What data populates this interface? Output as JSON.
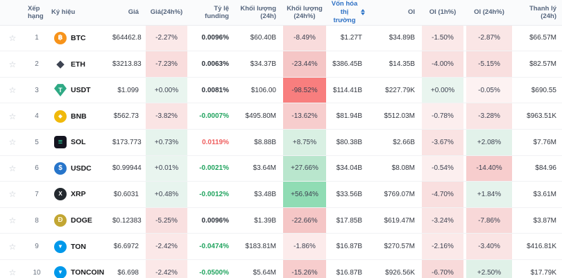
{
  "header": {
    "cols": [
      {
        "label": ""
      },
      {
        "label": "Xếp hạng"
      },
      {
        "label": "Ký hiệu"
      },
      {
        "label": "Giá"
      },
      {
        "label": "Giá(24h%)"
      },
      {
        "label": "Tỷ lệ funding"
      },
      {
        "label": "Khối lượng (24h)"
      },
      {
        "label": "Khối lượng (24h%)"
      },
      {
        "label": "Vốn hóa thị trường",
        "sorted": true
      },
      {
        "label": "OI"
      },
      {
        "label": "OI (1h%)"
      },
      {
        "label": "OI (24h%)"
      },
      {
        "label": "Thanh lý (24h)"
      }
    ],
    "text_color": "#55657d",
    "sorted_color": "#2e71c5"
  },
  "icons": {
    "favorite_star": "☆",
    "sort": "sort-arrows-icon"
  },
  "colors": {
    "positive_text": "#20a35e",
    "negative_text": "#ef5e5e",
    "neutral_text": "#2b313a",
    "row_border": "#f1f2f4",
    "header_bg": "#fafbfc"
  },
  "rows": [
    {
      "rank": "1",
      "symbol": "BTC",
      "icon": {
        "shape": "circle",
        "bg": "#f7931a",
        "fg": "#ffffff",
        "glyph": "฿"
      },
      "price": "$64462.8",
      "change_24h": {
        "text": "-2.27%",
        "bg": "#fbe9e9"
      },
      "funding": {
        "text": "0.0096%",
        "color": "#2b313a"
      },
      "volume_24h": "$60.40B",
      "volume_24h_pct": {
        "text": "-8.49%",
        "bg": "#f9dcdc"
      },
      "market_cap": "$1.27T",
      "open_interest": "$34.89B",
      "oi_1h_pct": {
        "text": "-1.50%",
        "bg": "#fbe9e9"
      },
      "oi_24h_pct": {
        "text": "-2.87%",
        "bg": "#fae6e6"
      },
      "liquidation_24h": "$66.57M"
    },
    {
      "rank": "2",
      "symbol": "ETH",
      "icon": {
        "shape": "plain",
        "bg": "transparent",
        "fg": "#3e4452",
        "glyph": "◆"
      },
      "price": "$3213.83",
      "change_24h": {
        "text": "-7.23%",
        "bg": "#f9dddd"
      },
      "funding": {
        "text": "0.0063%",
        "color": "#2b313a"
      },
      "volume_24h": "$34.37B",
      "volume_24h_pct": {
        "text": "-23.44%",
        "bg": "#f5c6c6"
      },
      "market_cap": "$386.45B",
      "open_interest": "$14.35B",
      "oi_1h_pct": {
        "text": "-4.00%",
        "bg": "#f9e1e1"
      },
      "oi_24h_pct": {
        "text": "-5.15%",
        "bg": "#f9dfdf"
      },
      "liquidation_24h": "$82.57M"
    },
    {
      "rank": "3",
      "symbol": "USDT",
      "icon": {
        "shape": "gem",
        "bg": "#2ea984",
        "fg": "#ffffff",
        "glyph": "T"
      },
      "price": "$1.099",
      "change_24h": {
        "text": "+0.00%",
        "bg": "#e9f5ef"
      },
      "funding": {
        "text": "0.0081%",
        "color": "#2b313a"
      },
      "volume_24h": "$106.00",
      "volume_24h_pct": {
        "text": "-98.52%",
        "bg": "#f87e7e"
      },
      "market_cap": "$114.41B",
      "open_interest": "$227.79K",
      "oi_1h_pct": {
        "text": "+0.00%",
        "bg": "#e9f5ef"
      },
      "oi_24h_pct": {
        "text": "-0.05%",
        "bg": "#fdf2f2"
      },
      "liquidation_24h": "$690.55"
    },
    {
      "rank": "4",
      "symbol": "BNB",
      "icon": {
        "shape": "circle",
        "bg": "#f0b90b",
        "fg": "#ffffff",
        "glyph": "◆",
        "small": true
      },
      "price": "$562.73",
      "change_24h": {
        "text": "-3.82%",
        "bg": "#fae4e4"
      },
      "funding": {
        "text": "-0.0007%",
        "color": "#20a35e"
      },
      "volume_24h": "$495.80M",
      "volume_24h_pct": {
        "text": "-13.62%",
        "bg": "#f7cdcd"
      },
      "market_cap": "$81.94B",
      "open_interest": "$512.03M",
      "oi_1h_pct": {
        "text": "-0.78%",
        "bg": "#fceeee"
      },
      "oi_24h_pct": {
        "text": "-3.28%",
        "bg": "#fae5e5"
      },
      "liquidation_24h": "$963.51K"
    },
    {
      "rank": "5",
      "symbol": "SOL",
      "icon": {
        "shape": "square",
        "bg": "#141420",
        "fg": "#2ce5a7",
        "glyph": "≡"
      },
      "price": "$173.773",
      "change_24h": {
        "text": "+0.73%",
        "bg": "#e6f4ed"
      },
      "funding": {
        "text": "0.0119%",
        "color": "#ef5e5e"
      },
      "volume_24h": "$8.88B",
      "volume_24h_pct": {
        "text": "+8.75%",
        "bg": "#d9f0e3"
      },
      "market_cap": "$80.38B",
      "open_interest": "$2.66B",
      "oi_1h_pct": {
        "text": "-3.67%",
        "bg": "#fae3e3"
      },
      "oi_24h_pct": {
        "text": "+2.08%",
        "bg": "#e2f2ea"
      },
      "liquidation_24h": "$7.76M"
    },
    {
      "rank": "6",
      "symbol": "USDC",
      "icon": {
        "shape": "circle",
        "bg": "#2775ca",
        "fg": "#ffffff",
        "glyph": "$"
      },
      "price": "$0.99944",
      "change_24h": {
        "text": "+0.01%",
        "bg": "#e9f5ef"
      },
      "funding": {
        "text": "-0.0021%",
        "color": "#20a35e"
      },
      "volume_24h": "$3.64M",
      "volume_24h_pct": {
        "text": "+27.66%",
        "bg": "#b9e6cd"
      },
      "market_cap": "$34.04B",
      "open_interest": "$8.08M",
      "oi_1h_pct": {
        "text": "-0.54%",
        "bg": "#fcefef"
      },
      "oi_24h_pct": {
        "text": "-14.40%",
        "bg": "#f7cdcd"
      },
      "liquidation_24h": "$84.96"
    },
    {
      "rank": "7",
      "symbol": "XRP",
      "icon": {
        "shape": "circle",
        "bg": "#23292f",
        "fg": "#ffffff",
        "glyph": "X",
        "small": true
      },
      "price": "$0.6031",
      "change_24h": {
        "text": "+0.48%",
        "bg": "#e7f4ee"
      },
      "funding": {
        "text": "-0.0012%",
        "color": "#20a35e"
      },
      "volume_24h": "$3.48B",
      "volume_24h_pct": {
        "text": "+56.94%",
        "bg": "#90dcb4"
      },
      "market_cap": "$33.56B",
      "open_interest": "$769.07M",
      "oi_1h_pct": {
        "text": "-4.70%",
        "bg": "#f9dfdf"
      },
      "oi_24h_pct": {
        "text": "+1.84%",
        "bg": "#e5f3ec"
      },
      "liquidation_24h": "$3.61M"
    },
    {
      "rank": "8",
      "symbol": "DOGE",
      "icon": {
        "shape": "circle",
        "bg": "#c2a633",
        "fg": "#fff6dc",
        "glyph": "Ð"
      },
      "price": "$0.12383",
      "change_24h": {
        "text": "-5.25%",
        "bg": "#f9e0e0"
      },
      "funding": {
        "text": "0.0096%",
        "color": "#2b313a"
      },
      "volume_24h": "$1.39B",
      "volume_24h_pct": {
        "text": "-22.66%",
        "bg": "#f5c6c6"
      },
      "market_cap": "$17.85B",
      "open_interest": "$619.47M",
      "oi_1h_pct": {
        "text": "-3.24%",
        "bg": "#fae5e5"
      },
      "oi_24h_pct": {
        "text": "-7.86%",
        "bg": "#f8d8d8"
      },
      "liquidation_24h": "$3.87M"
    },
    {
      "rank": "9",
      "symbol": "TON",
      "icon": {
        "shape": "circle",
        "bg": "#0098ea",
        "fg": "#ffffff",
        "glyph": "▼",
        "small": true
      },
      "price": "$6.6972",
      "change_24h": {
        "text": "-2.42%",
        "bg": "#fbe8e8"
      },
      "funding": {
        "text": "-0.0474%",
        "color": "#20a35e"
      },
      "volume_24h": "$183.81M",
      "volume_24h_pct": {
        "text": "-1.86%",
        "bg": "#fcebeb"
      },
      "market_cap": "$16.87B",
      "open_interest": "$270.57M",
      "oi_1h_pct": {
        "text": "-2.16%",
        "bg": "#fbe9e9"
      },
      "oi_24h_pct": {
        "text": "-3.40%",
        "bg": "#fae4e4"
      },
      "liquidation_24h": "$416.81K"
    },
    {
      "rank": "10",
      "symbol": "TONCOIN",
      "icon": {
        "shape": "circle",
        "bg": "#0098ea",
        "fg": "#ffffff",
        "glyph": "▼",
        "small": true
      },
      "price": "$6.698",
      "change_24h": {
        "text": "-2.42%",
        "bg": "#fbe8e8"
      },
      "funding": {
        "text": "-0.0500%",
        "color": "#20a35e"
      },
      "volume_24h": "$5.64M",
      "volume_24h_pct": {
        "text": "-15.26%",
        "bg": "#f7cdcd"
      },
      "market_cap": "$16.87B",
      "open_interest": "$926.56K",
      "oi_1h_pct": {
        "text": "-6.70%",
        "bg": "#f8dada"
      },
      "oi_24h_pct": {
        "text": "+2.50%",
        "bg": "#e0f1e8"
      },
      "liquidation_24h": "$17.79K"
    }
  ]
}
